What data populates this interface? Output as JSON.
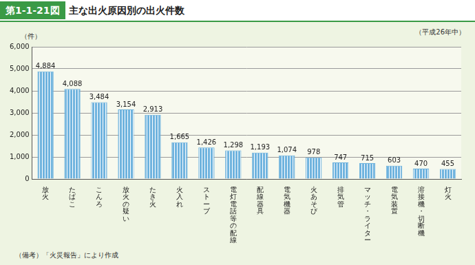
{
  "chart_data": {
    "type": "bar",
    "figure_label": "第1-1-21図",
    "title": "主な出火原因別の出火件数",
    "subtitle": "（平成26年中）",
    "y_axis_label": "（件）",
    "note": "（備考）「火災報告」により作成",
    "categories": [
      "放火",
      "たばこ",
      "こんろ",
      "放火の疑い",
      "たき火",
      "火入れ",
      "ストーブ",
      "電灯電話等の配線",
      "配線器具",
      "電気機器",
      "火あそび",
      "排気管",
      "マッチ・ライター",
      "電気装置",
      "溶接機・切断機",
      "灯火"
    ],
    "values": [
      4884,
      4088,
      3484,
      3154,
      2913,
      1665,
      1426,
      1298,
      1193,
      1074,
      978,
      747,
      715,
      603,
      470,
      455
    ],
    "value_labels": [
      "4,884",
      "4,088",
      "3,484",
      "3,154",
      "2,913",
      "1,665",
      "1,426",
      "1,298",
      "1,193",
      "1,074",
      "978",
      "747",
      "715",
      "603",
      "470",
      "455"
    ],
    "data_labels": true,
    "color": "#6fb3de",
    "ylim": [
      0,
      6000
    ],
    "yticks": [
      0,
      {
        "value": 1000,
        "label": "1,000"
      },
      {
        "value": 2000,
        "label": "2,000"
      },
      {
        "value": 3000,
        "label": "3,000"
      },
      {
        "value": 4000,
        "label": "4,000"
      },
      {
        "value": 5000,
        "label": "5,000"
      },
      {
        "value": 6000,
        "label": "6,000"
      }
    ],
    "grid": true
  }
}
